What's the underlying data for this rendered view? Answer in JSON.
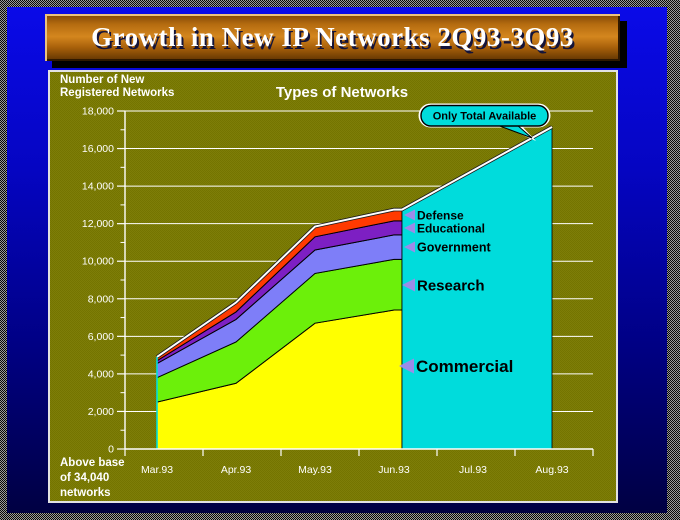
{
  "slide": {
    "title": "Growth in New IP Networks 2Q93-3Q93"
  },
  "chart_data": {
    "type": "area",
    "stacked": true,
    "title": "Types of Networks",
    "y_axis_label_lines": [
      "Number of New",
      "Registered Networks"
    ],
    "footnote_lines": [
      "Above base",
      "of 34,040",
      "networks"
    ],
    "categories": [
      "Mar.93",
      "Apr.93",
      "May.93",
      "Jun.93",
      "Jul.93",
      "Aug.93"
    ],
    "ylim": [
      0,
      18000
    ],
    "ytick_step": 2000,
    "ytick_labels": [
      "0",
      "2,000",
      "4,000",
      "6,000",
      "8,000",
      "10,000",
      "12,000",
      "14,000",
      "16,000",
      "18,000"
    ],
    "grid": true,
    "grid_color": "#ffffff",
    "axis_color": "#ffffff",
    "detail_months": [
      "Mar.93",
      "Apr.93",
      "May.93",
      "Jun.93"
    ],
    "series": [
      {
        "name": "Commercial",
        "color": "#ffff00",
        "values": [
          2500,
          3500,
          6700,
          7400
        ]
      },
      {
        "name": "Research",
        "color": "#6cf00a",
        "values": [
          1300,
          2200,
          2650,
          2700
        ]
      },
      {
        "name": "Government",
        "color": "#7e7ef8",
        "values": [
          750,
          1200,
          1250,
          1300
        ]
      },
      {
        "name": "Educational",
        "color": "#7d1fc3",
        "values": [
          150,
          400,
          700,
          750
        ]
      },
      {
        "name": "Defense",
        "color": "#ff3a00",
        "values": [
          200,
          500,
          550,
          600
        ]
      }
    ],
    "total": {
      "name": "Total",
      "line_color": "#ffffff",
      "values": [
        4900,
        7800,
        11850,
        12750,
        14950,
        17150
      ],
      "only_total_region": {
        "from": "Jun.93",
        "to": "Aug.93",
        "fill": "#00dcdc"
      }
    },
    "callout": "Only Total Available",
    "callout_fill": "#00dcdc",
    "arrow_color": "#9c8be8",
    "legend_position": "on-chart-right"
  }
}
